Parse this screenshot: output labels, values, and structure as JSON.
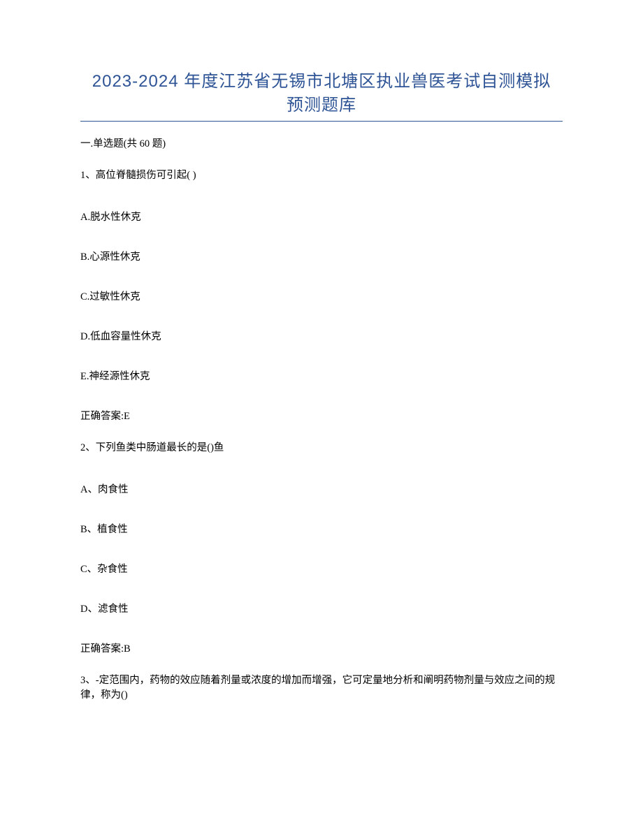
{
  "title_line1": "2023-2024 年度江苏省无锡市北塘区执业兽医考试自测模拟",
  "title_line2": "预测题库",
  "section_header": "一.单选题(共 60 题)",
  "questions": [
    {
      "stem": "1、高位脊髓损伤可引起( )",
      "options": [
        "A.脱水性休克",
        "B.心源性休克",
        "C.过敏性休克",
        "D.低血容量性休克",
        "E.神经源性休克"
      ],
      "answer": "正确答案:E"
    },
    {
      "stem": "2、下列鱼类中肠道最长的是()鱼",
      "options": [
        "A、肉食性",
        "B、植食性",
        "C、杂食性",
        "D、滤食性"
      ],
      "answer": "正确答案:B"
    },
    {
      "stem": "3、-定范围内，药物的效应随着剂量或浓度的增加而增强，它可定量地分析和阐明药物剂量与效应之间的规律，称为()",
      "options": [],
      "answer": ""
    }
  ],
  "colors": {
    "title": "#2e5496",
    "text": "#000000",
    "background": "#ffffff",
    "divider": "#2e5496"
  },
  "typography": {
    "title_fontsize": 24,
    "body_fontsize": 14.5,
    "title_font": "Microsoft YaHei",
    "body_font": "SimSun"
  }
}
